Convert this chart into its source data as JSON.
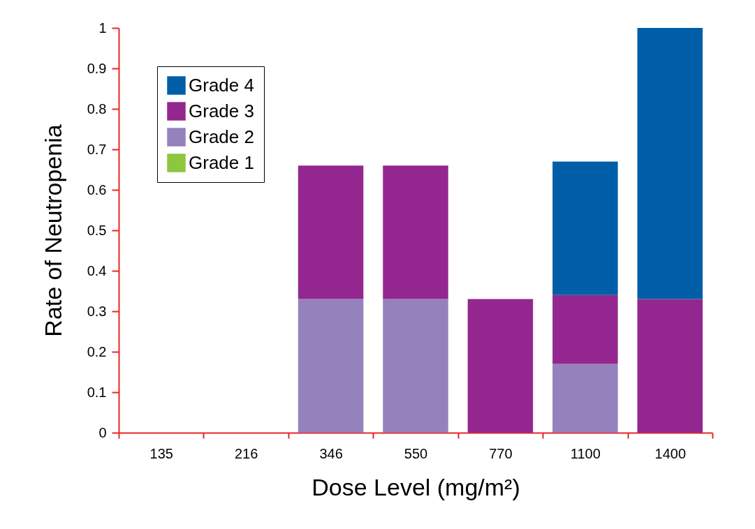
{
  "chart_data": {
    "type": "bar",
    "stacked": true,
    "xlabel": "Dose Level (mg/m²)",
    "ylabel": "Rate of Neutropenia",
    "categories": [
      "135",
      "216",
      "346",
      "550",
      "770",
      "1100",
      "1400"
    ],
    "series": [
      {
        "name": "Grade 1",
        "color": "#8dc63f",
        "values": [
          0,
          0,
          0,
          0,
          0,
          0,
          0
        ]
      },
      {
        "name": "Grade 2",
        "color": "#9581bc",
        "values": [
          0,
          0,
          0.33,
          0.33,
          0,
          0.17,
          0
        ]
      },
      {
        "name": "Grade 3",
        "color": "#93278f",
        "values": [
          0,
          0,
          0.33,
          0.33,
          0.33,
          0.17,
          0.33
        ]
      },
      {
        "name": "Grade 4",
        "color": "#005ea8",
        "values": [
          0,
          0,
          0,
          0,
          0,
          0.33,
          0.67
        ]
      }
    ],
    "ylim": [
      0,
      1
    ],
    "yticks": [
      0,
      0.1,
      0.2,
      0.3,
      0.4,
      0.5,
      0.6,
      0.7,
      0.8,
      0.9,
      1
    ],
    "grid": false,
    "legend": "top left"
  }
}
